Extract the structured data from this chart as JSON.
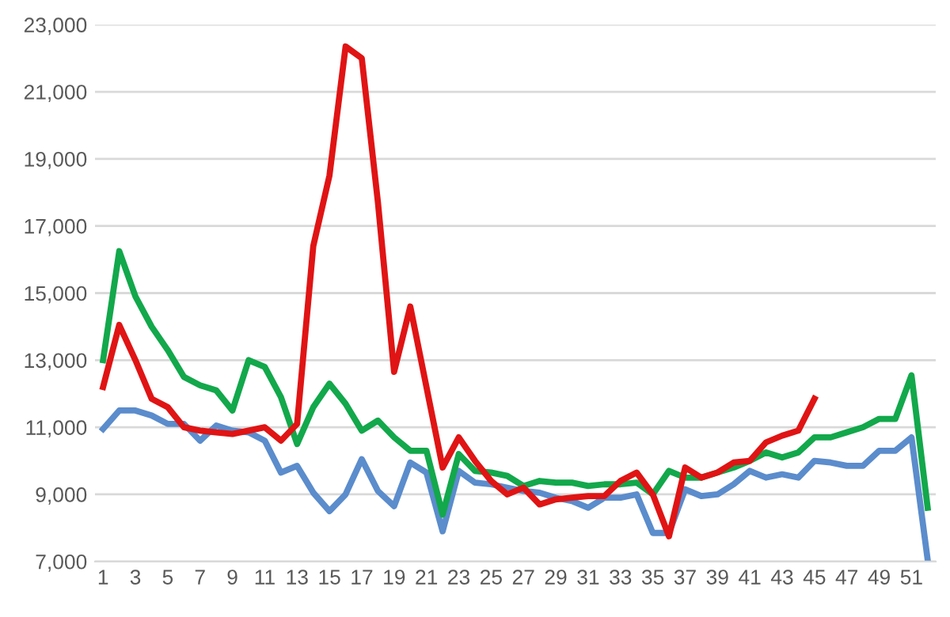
{
  "chart_data": {
    "type": "line",
    "categories": [
      "1",
      null,
      "3",
      null,
      "5",
      null,
      "7",
      null,
      "9",
      null,
      "11",
      null,
      "13",
      null,
      "15",
      null,
      "17",
      null,
      "19",
      null,
      "21",
      null,
      "23",
      null,
      "25",
      null,
      "27",
      null,
      "29",
      null,
      "31",
      null,
      "33",
      null,
      "35",
      null,
      "37",
      null,
      "39",
      null,
      "41",
      null,
      "43",
      null,
      "45",
      null,
      "47",
      null,
      "49",
      null,
      "51",
      null
    ],
    "series": [
      {
        "color": "#5b8ccc",
        "values": [
          10950,
          11500,
          11500,
          11350,
          11100,
          11100,
          10600,
          11050,
          10900,
          10850,
          10600,
          9650,
          9850,
          9050,
          8500,
          9000,
          10050,
          9100,
          8650,
          9950,
          9650,
          7900,
          9700,
          9350,
          9300,
          9200,
          9100,
          9050,
          8900,
          8800,
          8600,
          8900,
          8900,
          9000,
          7850,
          7850,
          9150,
          8950,
          9000,
          9300,
          9700,
          9500,
          9600,
          9500,
          10000,
          9950,
          9850,
          9850,
          10300,
          10300,
          10700,
          7050
        ]
      },
      {
        "color": "#12a84b",
        "values": [
          13000,
          16250,
          14900,
          14000,
          13300,
          12500,
          12250,
          12100,
          11500,
          13000,
          12800,
          11900,
          10500,
          11600,
          12300,
          11700,
          10900,
          11200,
          10700,
          10300,
          10300,
          8400,
          10200,
          9700,
          9650,
          9550,
          9250,
          9400,
          9350,
          9350,
          9250,
          9300,
          9300,
          9350,
          9000,
          9700,
          9500,
          9500,
          9650,
          9800,
          10000,
          10250,
          10100,
          10250,
          10700,
          10700,
          10850,
          11000,
          11250,
          11250,
          12550,
          8600
        ]
      },
      {
        "color": "#e01414",
        "values": [
          12200,
          14050,
          13000,
          11850,
          11600,
          11000,
          10900,
          10850,
          10800,
          10900,
          11000,
          10600,
          11100,
          16400,
          18500,
          22350,
          22000,
          17700,
          12650,
          14600,
          12200,
          9800,
          10700,
          10000,
          9400,
          9000,
          9200,
          8700,
          8850,
          8900,
          8950,
          8950,
          9400,
          9650,
          9000,
          7750,
          9800,
          9500,
          9650,
          9950,
          10000,
          10550,
          10750,
          10900,
          11850,
          null,
          null,
          null,
          null,
          null,
          null,
          null
        ]
      }
    ],
    "ylim": [
      7000,
      23000
    ],
    "yticks": [
      {
        "value": 7000,
        "label": "7,000"
      },
      {
        "value": 9000,
        "label": "9,000"
      },
      {
        "value": 11000,
        "label": "11,000"
      },
      {
        "value": 13000,
        "label": "13,000"
      },
      {
        "value": 15000,
        "label": "15,000"
      },
      {
        "value": 17000,
        "label": "17,000"
      },
      {
        "value": 19000,
        "label": "19,000"
      },
      {
        "value": 21000,
        "label": "21,000"
      },
      {
        "value": 23000,
        "label": "23,000"
      }
    ],
    "grid": "y",
    "marker": "none",
    "line_style": "solid"
  }
}
